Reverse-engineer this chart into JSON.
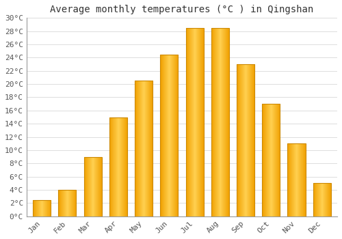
{
  "title": "Average monthly temperatures (°C ) in Qingshan",
  "months": [
    "Jan",
    "Feb",
    "Mar",
    "Apr",
    "May",
    "Jun",
    "Jul",
    "Aug",
    "Sep",
    "Oct",
    "Nov",
    "Dec"
  ],
  "values": [
    2.5,
    4.0,
    9.0,
    15.0,
    20.5,
    24.5,
    28.5,
    28.5,
    23.0,
    17.0,
    11.0,
    5.0
  ],
  "bar_color_center": "#FFD050",
  "bar_color_edge": "#F0A000",
  "bar_border_color": "#CC8800",
  "ylim": [
    0,
    30
  ],
  "yticks": [
    0,
    2,
    4,
    6,
    8,
    10,
    12,
    14,
    16,
    18,
    20,
    22,
    24,
    26,
    28,
    30
  ],
  "background_color": "#FFFFFF",
  "grid_color": "#DDDDDD",
  "title_fontsize": 10,
  "tick_fontsize": 8,
  "bar_width": 0.7
}
